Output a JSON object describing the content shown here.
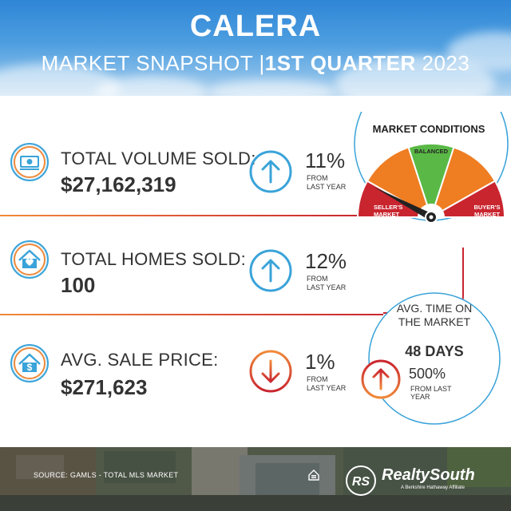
{
  "header": {
    "title": "CALERA",
    "subtitle_left": "MARKET SNAPSHOT",
    "subtitle_sep": "|",
    "subtitle_bold": "1ST QUARTER",
    "subtitle_year": "2023"
  },
  "stats": [
    {
      "label": "TOTAL VOLUME SOLD:",
      "value": "$27,162,319",
      "change": "11%",
      "direction": "up",
      "change_note_1": "FROM",
      "change_note_2": "LAST YEAR",
      "icon": "money-icon"
    },
    {
      "label": "TOTAL HOMES SOLD:",
      "value": "100",
      "change": "12%",
      "direction": "up",
      "change_note_1": "FROM",
      "change_note_2": "LAST YEAR",
      "icon": "home-heart-icon"
    },
    {
      "label": "AVG. SALE PRICE:",
      "value": "$271,623",
      "change": "1%",
      "direction": "down",
      "change_note_1": "FROM",
      "change_note_2": "LAST YEAR",
      "icon": "home-dollar-icon"
    }
  ],
  "market_conditions": {
    "title": "MARKET CONDITIONS",
    "sellers_1": "SELLER'S",
    "sellers_2": "MARKET",
    "balanced": "BALANCED",
    "buyers_1": "BUYER'S",
    "buyers_2": "MARKET",
    "indicator": "seller's market"
  },
  "avg_time": {
    "line1": "AVG. TIME ON",
    "line2": "THE MARKET",
    "days": "48 DAYS",
    "change": "500%",
    "from_1": "FROM LAST",
    "from_2": "YEAR",
    "direction": "up"
  },
  "footer": {
    "source": "SOURCE: GAMLS - TOTAL MLS MARKET",
    "logo_mark": "RS",
    "brand": "RealtySouth",
    "tagline": "A Berkshire Hathaway Affiliate"
  },
  "colors": {
    "red": "#c9252f",
    "orange": "#ef7d22",
    "green": "#5ab946",
    "blue": "#3aa3d9",
    "text": "#333333"
  }
}
